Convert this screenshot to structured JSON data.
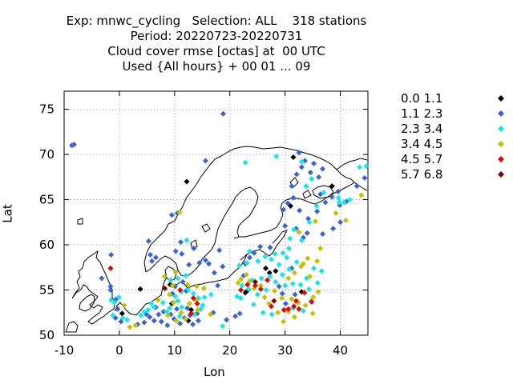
{
  "chart_data": {
    "type": "scatter",
    "title_lines": [
      "Exp: mnwc_cycling   Selection: ALL    318 stations",
      "Period: 20220723-20220731",
      "Cloud cover rmse [octas] at  00 UTC",
      "Used {All hours} + 00 01 ... 09"
    ],
    "xlabel": "Lon",
    "ylabel": "Lat",
    "xlim": [
      -10,
      45
    ],
    "ylim": [
      50,
      77
    ],
    "xticks": [
      -10,
      0,
      10,
      20,
      30,
      40
    ],
    "yticks": [
      50,
      55,
      60,
      65,
      70,
      75
    ],
    "grid": true,
    "legend_position": "right",
    "legend": [
      {
        "label": "0.0 1.1",
        "color": "#000000"
      },
      {
        "label": "1.1 2.3",
        "color": "#3b63d8"
      },
      {
        "label": "2.3 3.4",
        "color": "#15e6e6"
      },
      {
        "label": "3.4 4.5",
        "color": "#c2c200"
      },
      {
        "label": "4.5 5.7",
        "color": "#e80000"
      },
      {
        "label": "5.7 6.8",
        "color": "#800000"
      }
    ],
    "series": [
      {
        "name": "0.0 1.1",
        "points": [
          [
            12.2,
            67.0
          ],
          [
            31.5,
            69.7
          ],
          [
            38.5,
            66.5
          ],
          [
            31.0,
            64.3
          ],
          [
            3.8,
            55.1
          ],
          [
            9.2,
            55.6
          ],
          [
            9.5,
            53.5
          ],
          [
            12.5,
            51.6
          ],
          [
            13.0,
            52.8
          ],
          [
            26.5,
            57.4
          ],
          [
            27.2,
            56.9
          ],
          [
            28.3,
            57.1
          ],
          [
            22.8,
            54.7
          ],
          [
            23.3,
            55.0
          ],
          [
            33.0,
            54.8
          ],
          [
            0.5,
            52.4
          ]
        ]
      },
      {
        "name": "1.1 2.3",
        "points": [
          [
            -8.6,
            71.0
          ],
          [
            -8.2,
            71.1
          ],
          [
            18.8,
            74.5
          ],
          [
            15.6,
            69.3
          ],
          [
            10.5,
            63.5
          ],
          [
            9.5,
            63.3
          ],
          [
            5.3,
            60.4
          ],
          [
            5.6,
            58.9
          ],
          [
            5.9,
            58.2
          ],
          [
            6.6,
            58.6
          ],
          [
            10.2,
            59.3
          ],
          [
            11.3,
            59.0
          ],
          [
            11.1,
            60.3
          ],
          [
            12.6,
            57.8
          ],
          [
            13.5,
            59.6
          ],
          [
            14.5,
            58.0
          ],
          [
            15.6,
            58.3
          ],
          [
            16.2,
            57.9
          ],
          [
            17.2,
            56.9
          ],
          [
            18.1,
            59.4
          ],
          [
            18.7,
            57.6
          ],
          [
            -1.5,
            58.9
          ],
          [
            -3.2,
            56.3
          ],
          [
            -1.6,
            55.4
          ],
          [
            -1.6,
            55.0
          ],
          [
            -0.6,
            54.0
          ],
          [
            -0.3,
            52.9
          ],
          [
            -0.7,
            51.9
          ],
          [
            0.3,
            51.5
          ],
          [
            3.3,
            51.2
          ],
          [
            4.5,
            51.4
          ],
          [
            4.9,
            52.3
          ],
          [
            5.5,
            52.0
          ],
          [
            6.3,
            51.6
          ],
          [
            6.6,
            53.1
          ],
          [
            7.1,
            52.3
          ],
          [
            7.6,
            51.5
          ],
          [
            8.0,
            52.6
          ],
          [
            8.7,
            51.1
          ],
          [
            9.3,
            52.3
          ],
          [
            9.9,
            51.8
          ],
          [
            10.4,
            52.9
          ],
          [
            11.0,
            51.3
          ],
          [
            11.8,
            51.9
          ],
          [
            12.3,
            53.0
          ],
          [
            12.8,
            52.2
          ],
          [
            13.3,
            51.2
          ],
          [
            14.1,
            52.4
          ],
          [
            14.3,
            51.6
          ],
          [
            9.6,
            54.6
          ],
          [
            10.1,
            55.4
          ],
          [
            11.5,
            55.9
          ],
          [
            12.1,
            54.9
          ],
          [
            17.8,
            55.5
          ],
          [
            19.4,
            51.7
          ],
          [
            21.0,
            52.1
          ],
          [
            21.8,
            52.4
          ],
          [
            22.5,
            56.6
          ],
          [
            22.8,
            57.9
          ],
          [
            23.6,
            58.6
          ],
          [
            24.4,
            59.1
          ],
          [
            25.5,
            59.8
          ],
          [
            27.3,
            59.7
          ],
          [
            30.0,
            62.1
          ],
          [
            29.7,
            63.9
          ],
          [
            30.5,
            64.6
          ],
          [
            31.5,
            65.2
          ],
          [
            31.2,
            66.5
          ],
          [
            32.1,
            67.8
          ],
          [
            33.0,
            68.6
          ],
          [
            33.6,
            69.3
          ],
          [
            32.5,
            70.2
          ],
          [
            34.6,
            68.0
          ],
          [
            35.2,
            69.0
          ],
          [
            36.1,
            67.5
          ],
          [
            36.8,
            68.4
          ],
          [
            36.4,
            65.6
          ],
          [
            37.3,
            64.7
          ],
          [
            38.5,
            65.3
          ],
          [
            39.6,
            65.9
          ],
          [
            39.9,
            64.4
          ],
          [
            41.1,
            64.8
          ],
          [
            32.6,
            63.8
          ],
          [
            34.2,
            62.9
          ],
          [
            35.8,
            63.7
          ],
          [
            34.0,
            61.3
          ],
          [
            32.0,
            61.8
          ],
          [
            33.3,
            60.8
          ],
          [
            36.8,
            61.2
          ],
          [
            38.7,
            61.8
          ],
          [
            40.0,
            62.5
          ],
          [
            43.0,
            66.5
          ],
          [
            44.4,
            67.4
          ],
          [
            31.2,
            57.4
          ],
          [
            28.9,
            55.4
          ],
          [
            30.1,
            53.5
          ],
          [
            29.5,
            54.6
          ],
          [
            31.8,
            54.5
          ],
          [
            17.0,
            52.5
          ]
        ]
      },
      {
        "name": "2.3 3.4",
        "points": [
          [
            22.8,
            69.1
          ],
          [
            28.4,
            69.8
          ],
          [
            33.0,
            69.2
          ],
          [
            39.8,
            64.7
          ],
          [
            40.7,
            64.7
          ],
          [
            41.7,
            65.0
          ],
          [
            43.5,
            68.6
          ],
          [
            44.7,
            68.7
          ],
          [
            12.2,
            60.5
          ],
          [
            10.6,
            56.3
          ],
          [
            12.0,
            56.6
          ],
          [
            9.3,
            56.1
          ],
          [
            8.3,
            55.1
          ],
          [
            10.1,
            54.3
          ],
          [
            10.6,
            53.8
          ],
          [
            11.2,
            54.8
          ],
          [
            11.3,
            53.1
          ],
          [
            12.5,
            55.0
          ],
          [
            13.4,
            54.6
          ],
          [
            14.3,
            54.1
          ],
          [
            5.8,
            53.5
          ],
          [
            6.3,
            53.1
          ],
          [
            7.9,
            53.6
          ],
          [
            8.6,
            52.6
          ],
          [
            9.1,
            53.0
          ],
          [
            10.9,
            52.1
          ],
          [
            13.6,
            52.3
          ],
          [
            14.7,
            52.9
          ],
          [
            15.1,
            53.3
          ],
          [
            15.4,
            54.2
          ],
          [
            -0.9,
            53.6
          ],
          [
            -1.5,
            53.9
          ],
          [
            -1.2,
            52.2
          ],
          [
            -0.1,
            54.2
          ],
          [
            0.6,
            51.9
          ],
          [
            1.4,
            51.7
          ],
          [
            4.5,
            52.6
          ],
          [
            5.2,
            52.8
          ],
          [
            3.9,
            52.2
          ],
          [
            16.6,
            54.5
          ],
          [
            18.7,
            51.0
          ],
          [
            22.2,
            55.5
          ],
          [
            23.4,
            55.1
          ],
          [
            24.1,
            56.1
          ],
          [
            25.0,
            54.5
          ],
          [
            25.7,
            56.3
          ],
          [
            26.6,
            55.0
          ],
          [
            27.3,
            56.5
          ],
          [
            28.3,
            55.9
          ],
          [
            28.9,
            57.8
          ],
          [
            29.5,
            56.7
          ],
          [
            30.0,
            55.5
          ],
          [
            30.7,
            57.3
          ],
          [
            31.4,
            55.7
          ],
          [
            31.5,
            53.0
          ],
          [
            32.1,
            58.1
          ],
          [
            32.8,
            55.6
          ],
          [
            33.9,
            56.3
          ],
          [
            34.3,
            55.1
          ],
          [
            35.2,
            57.4
          ],
          [
            34.7,
            53.8
          ],
          [
            35.9,
            55.8
          ],
          [
            36.6,
            57.1
          ],
          [
            33.3,
            52.7
          ],
          [
            22.0,
            54.1
          ],
          [
            21.3,
            54.3
          ],
          [
            21.7,
            57.7
          ],
          [
            23.1,
            58.0
          ],
          [
            23.6,
            59.3
          ],
          [
            25.1,
            58.2
          ],
          [
            26.4,
            58.7
          ],
          [
            27.5,
            58.4
          ],
          [
            28.2,
            59.0
          ],
          [
            29.6,
            59.1
          ],
          [
            30.7,
            59.6
          ],
          [
            30.3,
            58.6
          ],
          [
            30.9,
            60.7
          ],
          [
            31.6,
            61.7
          ],
          [
            33.0,
            60.5
          ],
          [
            34.4,
            62.5
          ],
          [
            35.7,
            64.3
          ],
          [
            37.0,
            65.8
          ],
          [
            39.7,
            65.2
          ],
          [
            33.8,
            66.5
          ],
          [
            34.8,
            67.3
          ],
          [
            24.3,
            53.4
          ],
          [
            26.0,
            52.5
          ],
          [
            27.6,
            52.3
          ]
        ]
      },
      {
        "name": "3.4 4.5",
        "points": [
          [
            10.9,
            63.6
          ],
          [
            43.8,
            65.5
          ],
          [
            41.0,
            62.7
          ],
          [
            39.2,
            63.5
          ],
          [
            35.5,
            62.6
          ],
          [
            32.5,
            61.4
          ],
          [
            36.4,
            59.6
          ],
          [
            35.8,
            58.2
          ],
          [
            34.1,
            58.5
          ],
          [
            32.9,
            57.6
          ],
          [
            31.7,
            56.9
          ],
          [
            30.6,
            56.3
          ],
          [
            33.3,
            57.9
          ],
          [
            34.5,
            56.5
          ],
          [
            29.4,
            54.1
          ],
          [
            28.1,
            54.9
          ],
          [
            27.1,
            53.5
          ],
          [
            26.3,
            54.2
          ],
          [
            25.6,
            55.5
          ],
          [
            24.4,
            55.2
          ],
          [
            23.6,
            56.0
          ],
          [
            22.0,
            56.2
          ],
          [
            21.5,
            55.8
          ],
          [
            23.0,
            56.7
          ],
          [
            31.2,
            54.0
          ],
          [
            32.4,
            53.6
          ],
          [
            33.7,
            53.3
          ],
          [
            35.1,
            54.2
          ],
          [
            31.7,
            52.0
          ],
          [
            30.6,
            52.6
          ],
          [
            29.7,
            51.5
          ],
          [
            28.7,
            52.5
          ],
          [
            35.0,
            52.4
          ],
          [
            36.0,
            54.8
          ],
          [
            7.0,
            53.9
          ],
          [
            9.1,
            54.5
          ],
          [
            9.8,
            53.6
          ],
          [
            11.2,
            52.5
          ],
          [
            12.7,
            53.5
          ],
          [
            13.8,
            53.9
          ],
          [
            14.2,
            52.8
          ],
          [
            12.0,
            51.8
          ],
          [
            10.3,
            51.6
          ],
          [
            8.8,
            52.2
          ],
          [
            1.9,
            50.9
          ],
          [
            2.9,
            51.1
          ],
          [
            0.9,
            53.3
          ],
          [
            9.6,
            55.5
          ],
          [
            10.2,
            57.0
          ],
          [
            12.4,
            55.6
          ],
          [
            14.0,
            55.4
          ],
          [
            15.3,
            55.2
          ],
          [
            16.5,
            52.3
          ],
          [
            8.2,
            56.5
          ]
        ]
      },
      {
        "name": "4.5 5.7",
        "points": [
          [
            -1.6,
            57.4
          ],
          [
            13.4,
            54.1
          ],
          [
            14.1,
            53.5
          ],
          [
            13.0,
            52.4
          ],
          [
            11.0,
            55.0
          ],
          [
            22.0,
            55.0
          ],
          [
            23.2,
            55.6
          ],
          [
            24.6,
            55.5
          ],
          [
            25.6,
            55.1
          ],
          [
            26.8,
            56.1
          ],
          [
            27.5,
            53.2
          ],
          [
            29.8,
            52.8
          ],
          [
            30.6,
            52.9
          ],
          [
            31.6,
            53.2
          ],
          [
            32.0,
            53.8
          ],
          [
            32.5,
            52.9
          ],
          [
            33.5,
            54.7
          ],
          [
            34.8,
            53.7
          ]
        ]
      },
      {
        "name": "5.7 6.8",
        "points": [
          [
            8.2,
            55.2
          ],
          [
            24.6,
            55.9
          ],
          [
            28.0,
            53.8
          ]
        ]
      }
    ]
  }
}
